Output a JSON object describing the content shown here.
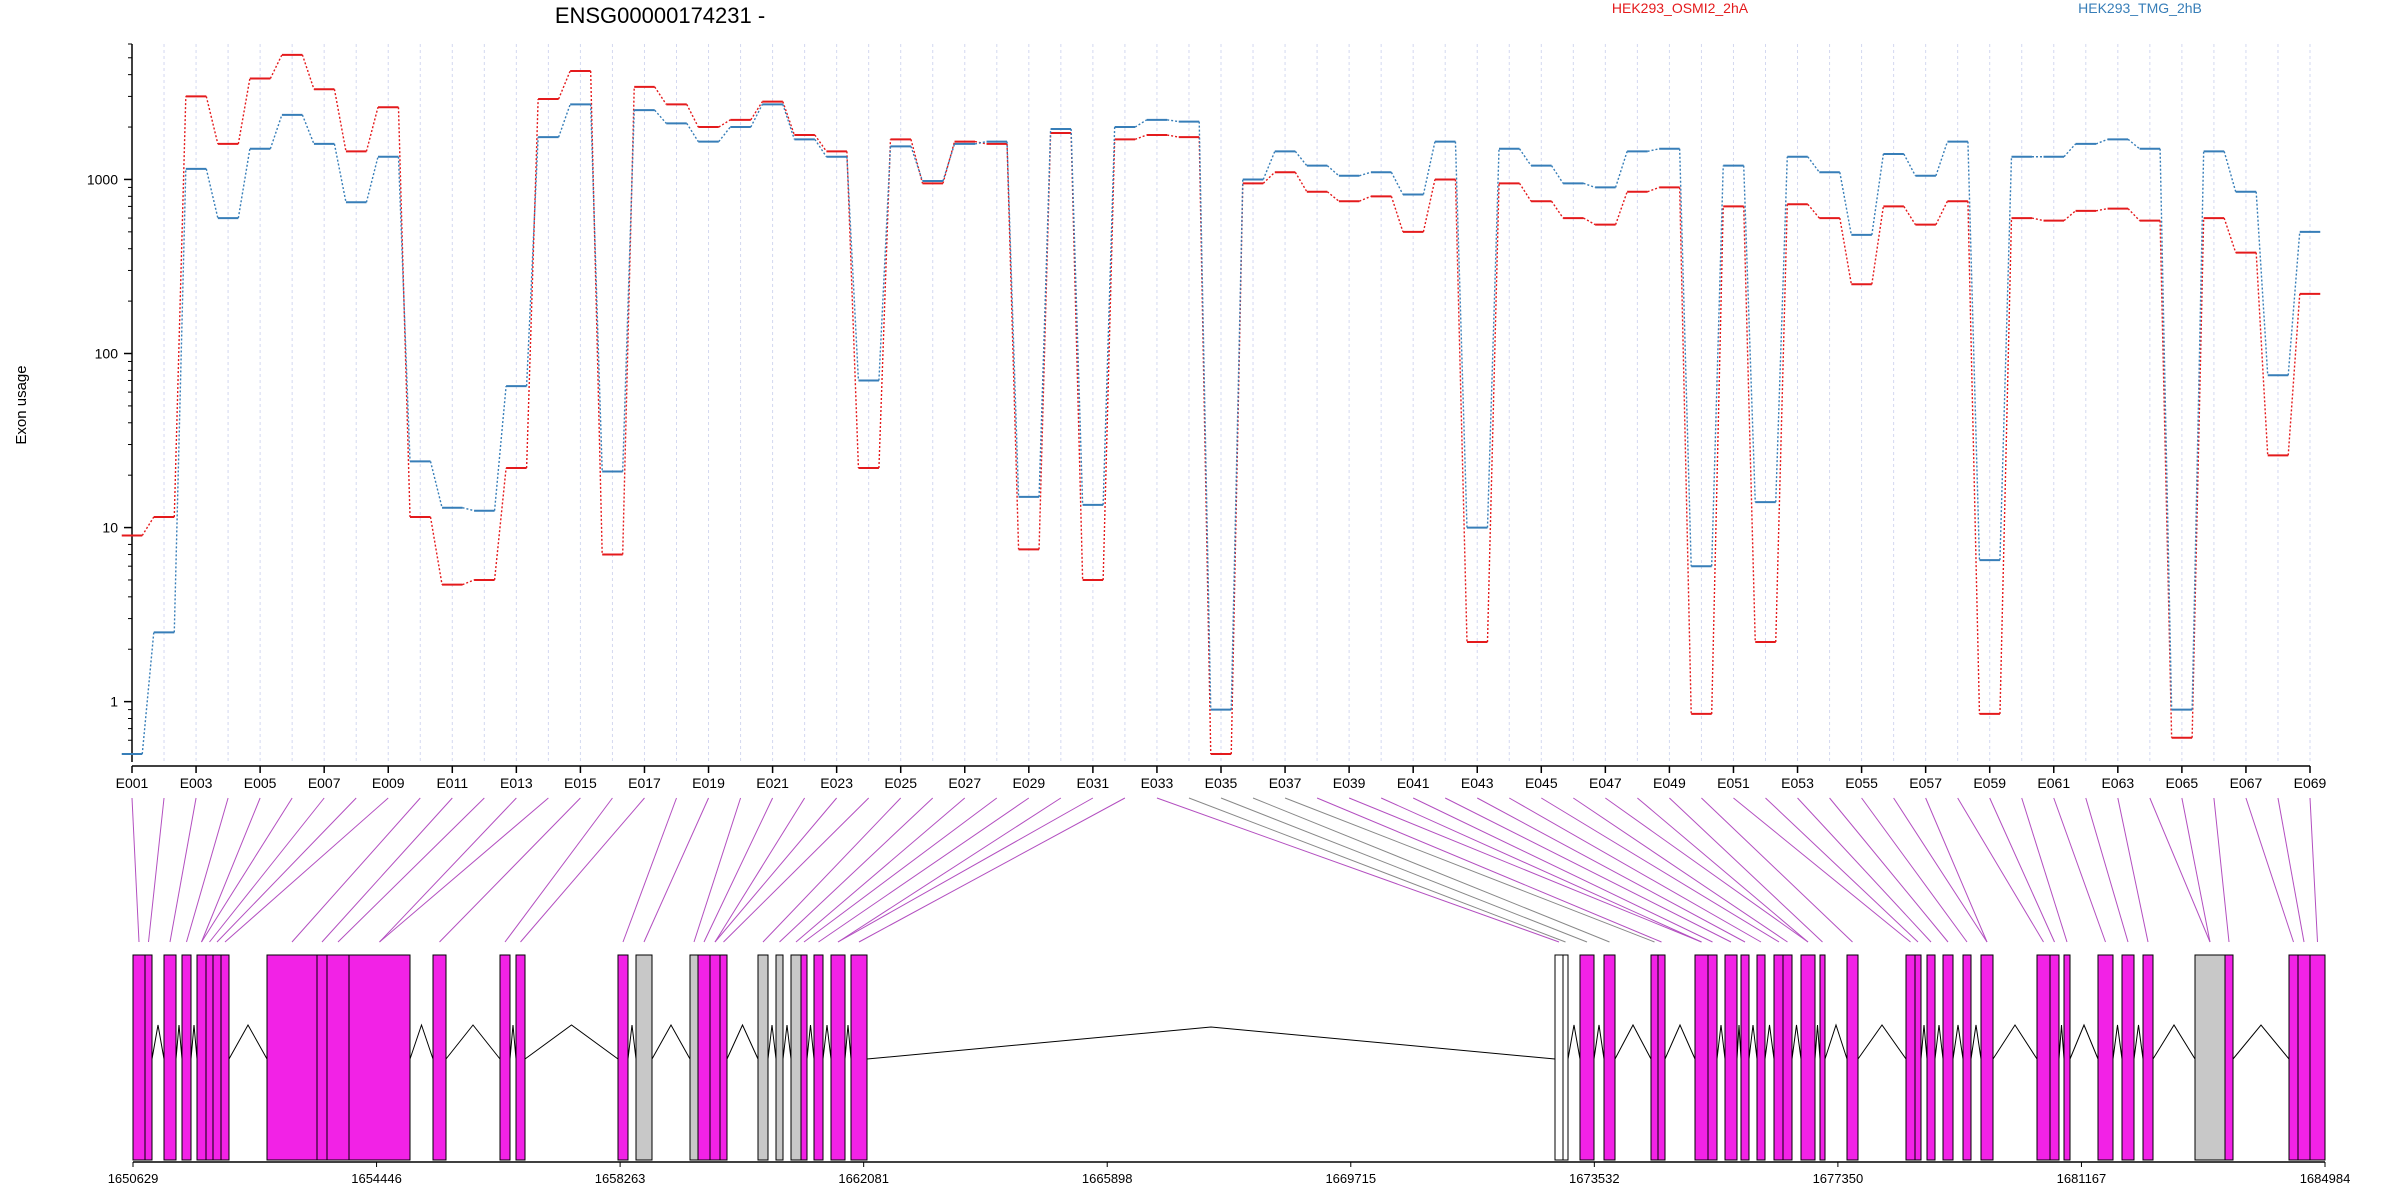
{
  "chart_data": {
    "type": "line",
    "title": "ENSG00000174231 -",
    "ylabel": "Exon usage",
    "xlabel": "",
    "yscale": "log",
    "ylim": [
      0.45,
      6000
    ],
    "y_ticks": [
      1,
      10,
      100,
      1000
    ],
    "y_tick_labels": [
      "1",
      "10",
      "100",
      "1000"
    ],
    "grid": "vertical dashed",
    "legend_placement": "top",
    "categories": [
      "E001",
      "E002",
      "E003",
      "E004",
      "E005",
      "E006",
      "E007",
      "E008",
      "E009",
      "E010",
      "E011",
      "E012",
      "E013",
      "E014",
      "E015",
      "E016",
      "E017",
      "E018",
      "E019",
      "E020",
      "E021",
      "E022",
      "E023",
      "E024",
      "E025",
      "E026",
      "E027",
      "E028",
      "E029",
      "E030",
      "E031",
      "E032",
      "E033",
      "E034",
      "E035",
      "E036",
      "E037",
      "E038",
      "E039",
      "E040",
      "E041",
      "E042",
      "E043",
      "E044",
      "E045",
      "E046",
      "E047",
      "E048",
      "E049",
      "E050",
      "E051",
      "E052",
      "E053",
      "E054",
      "E055",
      "E056",
      "E057",
      "E058",
      "E059",
      "E060",
      "E061",
      "E062",
      "E063",
      "E064",
      "E065",
      "E066",
      "E067",
      "E068",
      "E069"
    ],
    "x_tick_labels": [
      "E001",
      "E003",
      "E005",
      "E007",
      "E009",
      "E011",
      "E013",
      "E015",
      "E017",
      "E019",
      "E021",
      "E023",
      "E025",
      "E027",
      "E029",
      "E031",
      "E033",
      "E035",
      "E037",
      "E039",
      "E041",
      "E043",
      "E045",
      "E047",
      "E049",
      "E051",
      "E053",
      "E055",
      "E057",
      "E059",
      "E061",
      "E063",
      "E065",
      "E067",
      "E069"
    ],
    "series": [
      {
        "name": "HEK293_OSMI2_2hA",
        "color": "#e41a1c",
        "values": [
          9,
          11.5,
          3000,
          1600,
          3800,
          5200,
          3300,
          1450,
          2600,
          11.5,
          4.7,
          5,
          22,
          2900,
          4200,
          7,
          3400,
          2700,
          2000,
          2200,
          2800,
          1800,
          1450,
          22,
          1700,
          950,
          1650,
          1600,
          7.5,
          1850,
          5,
          1700,
          1800,
          1750,
          0.5,
          950,
          1100,
          850,
          750,
          800,
          500,
          1000,
          2.2,
          950,
          750,
          600,
          550,
          850,
          900,
          0.85,
          700,
          2.2,
          720,
          600,
          250,
          700,
          550,
          750,
          0.85,
          600,
          580,
          660,
          680,
          580,
          0.62,
          600,
          380,
          26,
          220
        ]
      },
      {
        "name": "HEK293_TMG_2hB",
        "color": "#377eb8",
        "values": [
          0.5,
          2.5,
          1150,
          600,
          1500,
          2350,
          1600,
          740,
          1350,
          24,
          13,
          12.5,
          65,
          1750,
          2700,
          21,
          2500,
          2100,
          1650,
          2000,
          2700,
          1700,
          1350,
          70,
          1550,
          980,
          1600,
          1650,
          15,
          1950,
          13.5,
          2000,
          2200,
          2150,
          0.9,
          1000,
          1450,
          1200,
          1050,
          1100,
          820,
          1650,
          10,
          1500,
          1200,
          950,
          900,
          1450,
          1500,
          6,
          1200,
          14,
          1350,
          1100,
          480,
          1400,
          1050,
          1650,
          6.5,
          1350,
          1350,
          1600,
          1700,
          1500,
          0.9,
          1450,
          850,
          75,
          500
        ]
      }
    ],
    "genomic_ticks": [
      "1650629",
      "1654446",
      "1658263",
      "1662081",
      "1665898",
      "1669715",
      "1673532",
      "1677350",
      "1681167",
      "1684984"
    ],
    "colors": {
      "exon_fill": "#f222e6",
      "exon_gray": "#c8c8c8",
      "connector_magenta": "#b34fc0",
      "connector_gray": "#888888"
    }
  }
}
